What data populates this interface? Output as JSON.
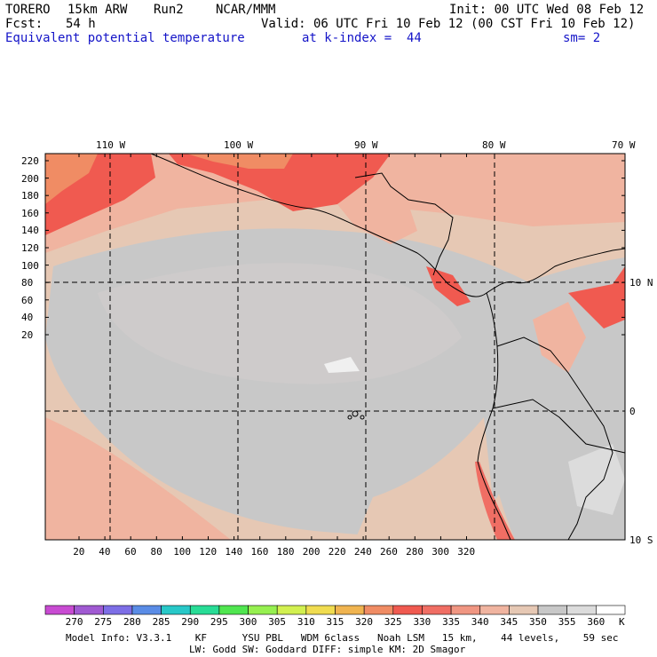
{
  "header": {
    "model": "TORERO",
    "resolution": "15km ARW",
    "run": "Run2",
    "org": "NCAR/MMM",
    "init": "Init: 00 UTC Wed 08 Feb 12",
    "fcst_label": "Fcst:",
    "fcst_value": "54 h",
    "valid": "Valid: 06 UTC Fri 10 Feb 12 (00 CST Fri 10 Feb 12)",
    "field": "Equivalent potential temperature",
    "level": "at k-index =  44",
    "smoothing": "sm= 2"
  },
  "map": {
    "lon_labels": [
      "110 W",
      "100 W",
      "90 W",
      "80 W",
      "70 W"
    ],
    "lat_labels": [
      "10 N",
      "0",
      "10 S"
    ],
    "y_ticks": [
      "220",
      "200",
      "180",
      "160",
      "140",
      "120",
      "100",
      "80",
      "60",
      "40",
      "20"
    ],
    "x_ticks": [
      "20",
      "40",
      "60",
      "80",
      "100",
      "120",
      "140",
      "160",
      "180",
      "200",
      "220",
      "240",
      "260",
      "280",
      "300",
      "320"
    ]
  },
  "colorbar": {
    "values": [
      "270",
      "275",
      "280",
      "285",
      "290",
      "295",
      "300",
      "305",
      "310",
      "315",
      "320",
      "325",
      "330",
      "335",
      "340",
      "345",
      "350",
      "355",
      "360"
    ],
    "unit": "K",
    "colors": [
      "#c84bd2",
      "#a05ad2",
      "#7d6ee6",
      "#5a8ce6",
      "#28c8c8",
      "#28dc96",
      "#50e650",
      "#96f050",
      "#d2f050",
      "#f0dc50",
      "#f0b450",
      "#f08c64",
      "#f05a50",
      "#f06e64",
      "#f09682",
      "#f0b4a0",
      "#e6c8b4",
      "#c8c8c8",
      "#dcdcdc",
      "#ffffff"
    ]
  },
  "footer": {
    "line1": "Model Info: V3.3.1    KF      YSU PBL   WDM 6class   Noah LSM   15 km,    44 levels,    59 sec",
    "line2": "LW: Godd SW: Goddard DIFF: simple KM: 2D Smagor"
  }
}
